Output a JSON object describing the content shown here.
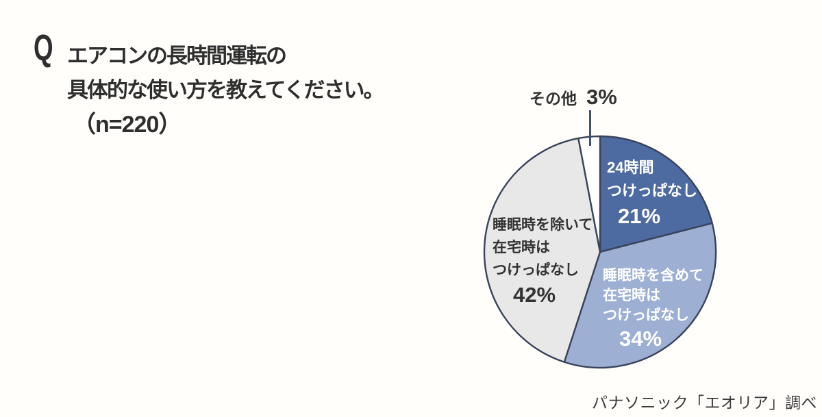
{
  "question": {
    "q_mark": "Q",
    "line1": "エアコンの長時間運転の",
    "line2": "具体的な使い方を教えてください。",
    "line3": "（n=220）"
  },
  "labels": {
    "h24": {
      "line1": "24時間",
      "line2": "つけっぱなし",
      "pct": "21%"
    },
    "incl": {
      "line1": "睡眠時を含めて",
      "line2": "在宅時は",
      "line3": "つけっぱなし",
      "pct": "34%"
    },
    "excl": {
      "line1": "睡眠時を除いて",
      "line2": "在宅時は",
      "line3": "つけっぱなし",
      "pct": "42%"
    },
    "other": {
      "label": "その他",
      "pct": "3%"
    }
  },
  "source": "パナソニック「エオリア」調べ",
  "chart_data": {
    "type": "pie",
    "title": "エアコンの長時間運転の具体的な使い方を教えてください。",
    "sample_label": "n=220",
    "start_angle_deg": 0,
    "direction": "clockwise",
    "outline_color": "#39435a",
    "legend_position": "labels-on-slices",
    "slices": [
      {
        "label": "24時間つけっぱなし",
        "value": 21,
        "color": "#4d6aa1",
        "text_color": "#ffffff"
      },
      {
        "label": "睡眠時を含めて在宅時はつけっぱなし",
        "value": 34,
        "color": "#9dafd3",
        "text_color": "#ffffff"
      },
      {
        "label": "睡眠時を除いて在宅時はつけっぱなし",
        "value": 42,
        "color": "#e8e8e8",
        "text_color": "#333333"
      },
      {
        "label": "その他",
        "value": 3,
        "color": "#ffffff",
        "text_color": "#333333"
      }
    ],
    "source": "パナソニック「エオリア」調べ"
  }
}
